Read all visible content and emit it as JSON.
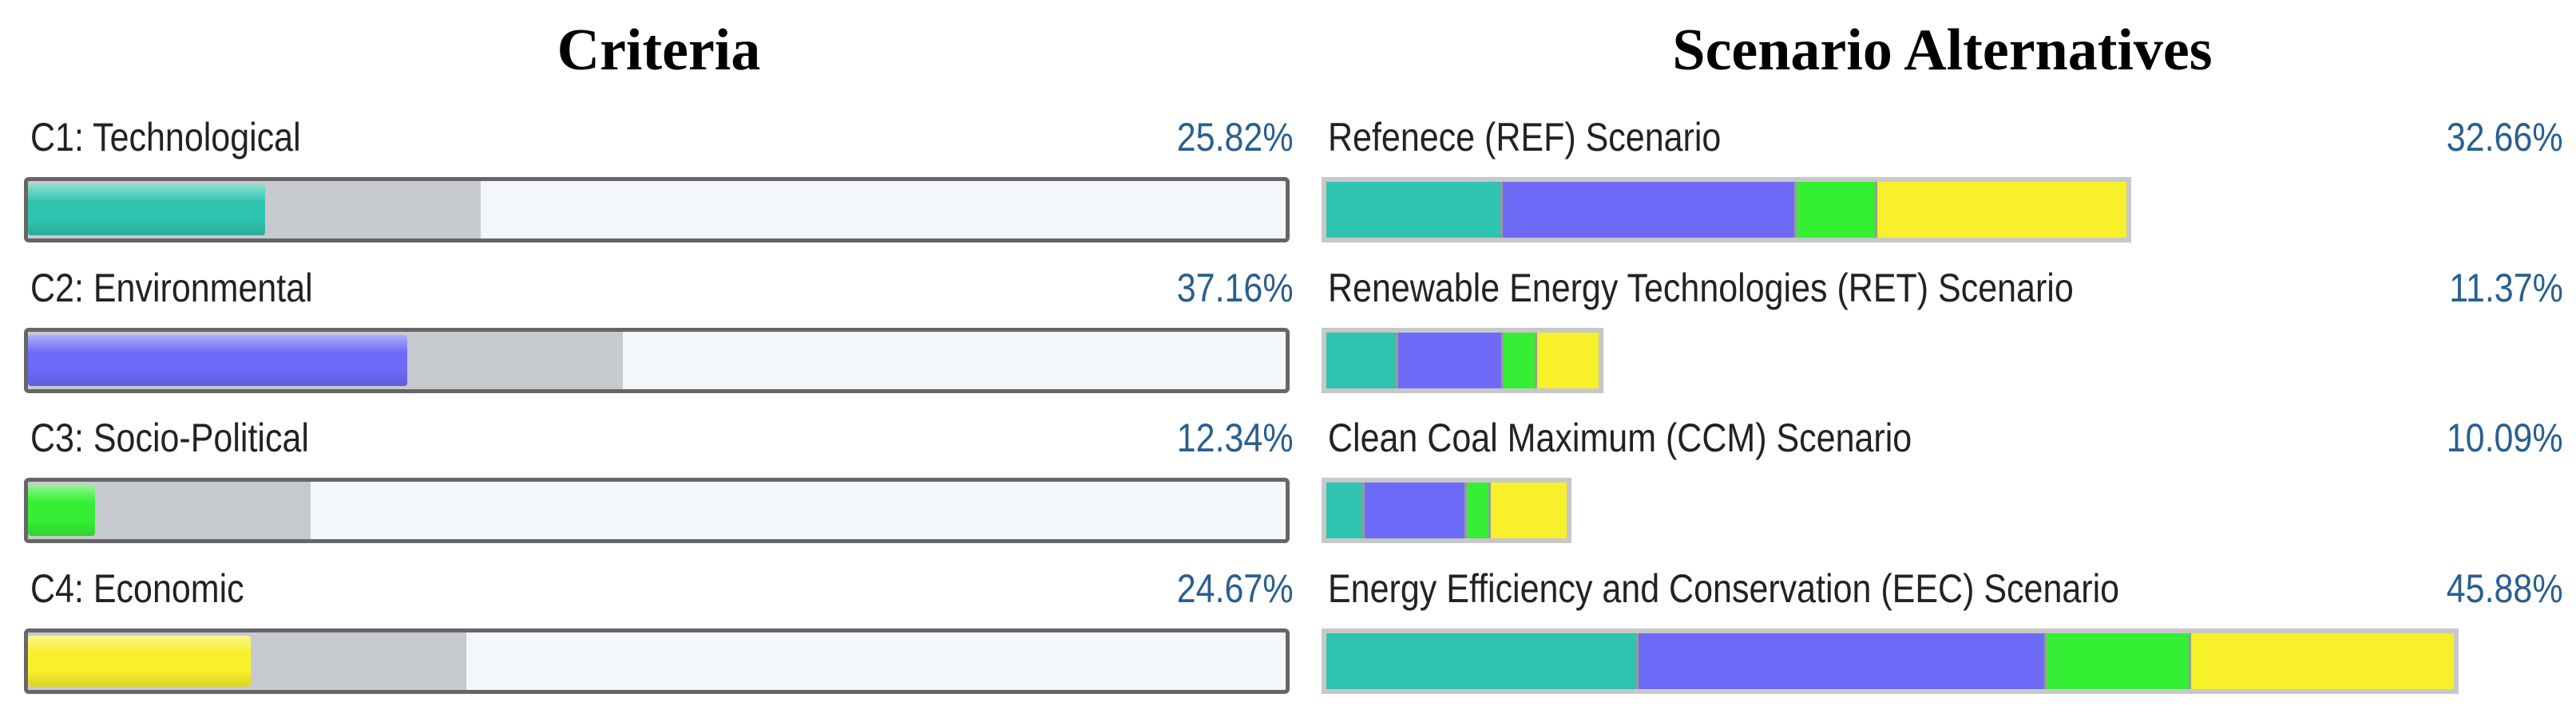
{
  "colors": {
    "technological": "#2ec4b0",
    "environmental": "#6e6af8",
    "socio_political": "#35ef35",
    "economic": "#f8f02a"
  },
  "chart_data": [
    {
      "type": "bar",
      "title": "Criteria",
      "categories": [
        "C1: Technological",
        "C2: Environmental",
        "C3: Socio-Political",
        "C4: Economic"
      ],
      "values": [
        25.82,
        37.16,
        12.34,
        24.67
      ],
      "value_labels": [
        "25.82%",
        "37.16%",
        "12.34%",
        "24.67%"
      ],
      "ylim": [
        0,
        100
      ],
      "colors": [
        "#2ec4b0",
        "#6e6af8",
        "#35ef35",
        "#f8f02a"
      ]
    },
    {
      "type": "bar",
      "stacked": true,
      "title": "Scenario Alternatives",
      "categories": [
        "Refenece (REF) Scenario",
        "Renewable Energy Technologies (RET) Scenario",
        "Clean Coal Maximum (CCM) Scenario",
        "Energy Efficiency and Conservation (EEC) Scenario"
      ],
      "values": [
        32.66,
        11.37,
        10.09,
        45.88
      ],
      "value_labels": [
        "32.66%",
        "11.37%",
        "10.09%",
        "45.88%"
      ],
      "ylim": [
        0,
        48
      ],
      "series": [
        {
          "values": [
            7.2,
            3.0,
            1.6,
            12.7
          ]
        },
        {
          "values": [
            12.0,
            4.4,
            4.3,
            16.6
          ]
        },
        {
          "values": [
            3.3,
            1.4,
            1.0,
            5.9
          ]
        },
        {
          "values": [
            10.16,
            2.57,
            3.19,
            10.68
          ]
        }
      ],
      "colors": [
        "#2ec4b0",
        "#6e6af8",
        "#35ef35",
        "#f8f02a"
      ]
    }
  ]
}
